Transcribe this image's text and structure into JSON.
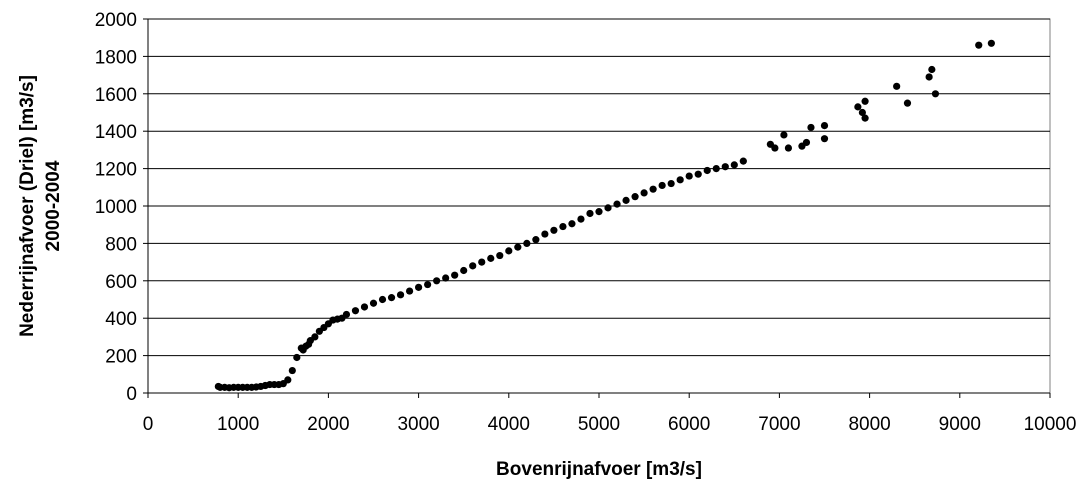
{
  "chart_data": {
    "type": "scatter",
    "title": "",
    "xlabel": "Bovenrijnafvoer [m3/s]",
    "ylabel_lines": [
      "Nederrijnafvoer (Driel) [m3/s]",
      "2000-2004"
    ],
    "xlim": [
      0,
      10000
    ],
    "ylim": [
      0,
      2000
    ],
    "x_ticks": [
      0,
      1000,
      2000,
      3000,
      4000,
      5000,
      6000,
      7000,
      8000,
      9000,
      10000
    ],
    "y_ticks": [
      0,
      200,
      400,
      600,
      800,
      1000,
      1200,
      1400,
      1600,
      1800,
      2000
    ],
    "grid": {
      "horizontal": true,
      "vertical": false
    },
    "legend": "none",
    "marker_color": "#000000",
    "series": [
      {
        "x": [
          780,
          800,
          850,
          900,
          950,
          1000,
          1050,
          1100,
          1150,
          1200,
          1250,
          1300,
          1350,
          1400,
          1450,
          1500,
          1550,
          1600,
          1650,
          1700,
          1720,
          1750,
          1780,
          1800,
          1850,
          1900,
          1950,
          2000,
          2050,
          2100,
          2150,
          2200,
          2300,
          2400,
          2500,
          2600,
          2700,
          2800,
          2900,
          3000,
          3100,
          3200,
          3300,
          3400,
          3500,
          3600,
          3700,
          3800,
          3900,
          4000,
          4100,
          4200,
          4300,
          4400,
          4500,
          4600,
          4700,
          4800,
          4900,
          5000,
          5100,
          5200,
          5300,
          5400,
          5500,
          5600,
          5700,
          5800,
          5900,
          6000,
          6100,
          6200,
          6300,
          6400,
          6500,
          6600,
          6900,
          6950,
          7050,
          7100,
          7250,
          7300,
          7350,
          7500,
          7500,
          7870,
          7920,
          7950,
          7950,
          8300,
          8420,
          8660,
          8690,
          8730,
          9210,
          9350
        ],
        "y": [
          35,
          30,
          30,
          28,
          30,
          30,
          30,
          30,
          30,
          32,
          35,
          40,
          45,
          45,
          45,
          50,
          70,
          120,
          190,
          240,
          230,
          250,
          260,
          280,
          300,
          330,
          350,
          370,
          390,
          395,
          400,
          420,
          440,
          460,
          480,
          500,
          510,
          525,
          545,
          565,
          580,
          600,
          615,
          630,
          655,
          680,
          700,
          720,
          735,
          760,
          780,
          800,
          820,
          850,
          870,
          890,
          905,
          930,
          960,
          970,
          990,
          1010,
          1030,
          1050,
          1070,
          1090,
          1110,
          1120,
          1140,
          1160,
          1170,
          1190,
          1200,
          1210,
          1220,
          1240,
          1330,
          1310,
          1380,
          1310,
          1320,
          1340,
          1420,
          1430,
          1360,
          1530,
          1500,
          1470,
          1560,
          1640,
          1550,
          1690,
          1730,
          1600,
          1860,
          1870
        ]
      }
    ]
  }
}
